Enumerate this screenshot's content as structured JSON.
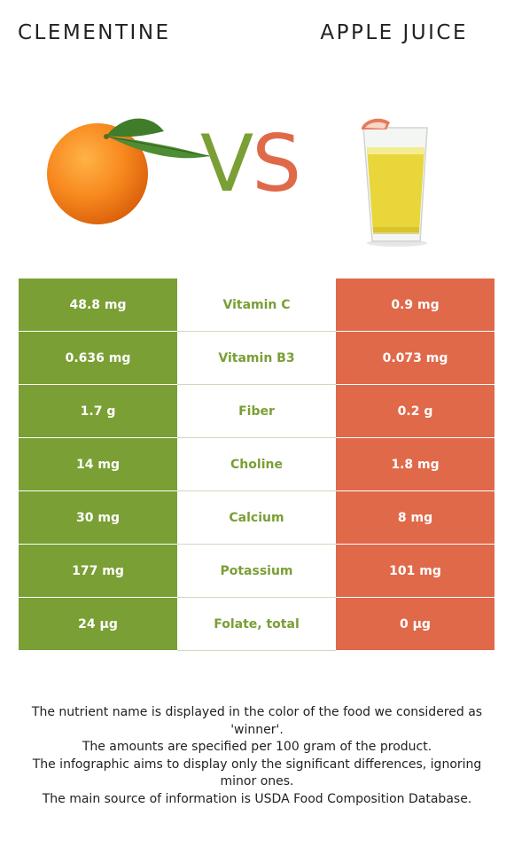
{
  "header": {
    "left_food": "CLEMENTINE",
    "right_food": "APPLE JUICE",
    "vs_v": "V",
    "vs_s": "S"
  },
  "colors": {
    "winner_left": "#7a9f35",
    "right": "#e0694a"
  },
  "images": {
    "left": "clementine-fruit-image",
    "right": "apple-juice-glass-image"
  },
  "rows": [
    {
      "left": "48.8 mg",
      "nutrient": "Vitamin C",
      "right": "0.9 mg"
    },
    {
      "left": "0.636 mg",
      "nutrient": "Vitamin B3",
      "right": "0.073 mg"
    },
    {
      "left": "1.7 g",
      "nutrient": "Fiber",
      "right": "0.2 g"
    },
    {
      "left": "14 mg",
      "nutrient": "Choline",
      "right": "1.8 mg"
    },
    {
      "left": "30 mg",
      "nutrient": "Calcium",
      "right": "8 mg"
    },
    {
      "left": "177 mg",
      "nutrient": "Potassium",
      "right": "101 mg"
    },
    {
      "left": "24 µg",
      "nutrient": "Folate, total",
      "right": "0 µg"
    }
  ],
  "footer": [
    "The nutrient name is displayed in the color of the food we considered as 'winner'.",
    "The amounts are specified per 100 gram of the product.",
    "The infographic aims to display only the significant differences, ignoring minor ones.",
    "The main source of information is USDA Food Composition Database."
  ]
}
